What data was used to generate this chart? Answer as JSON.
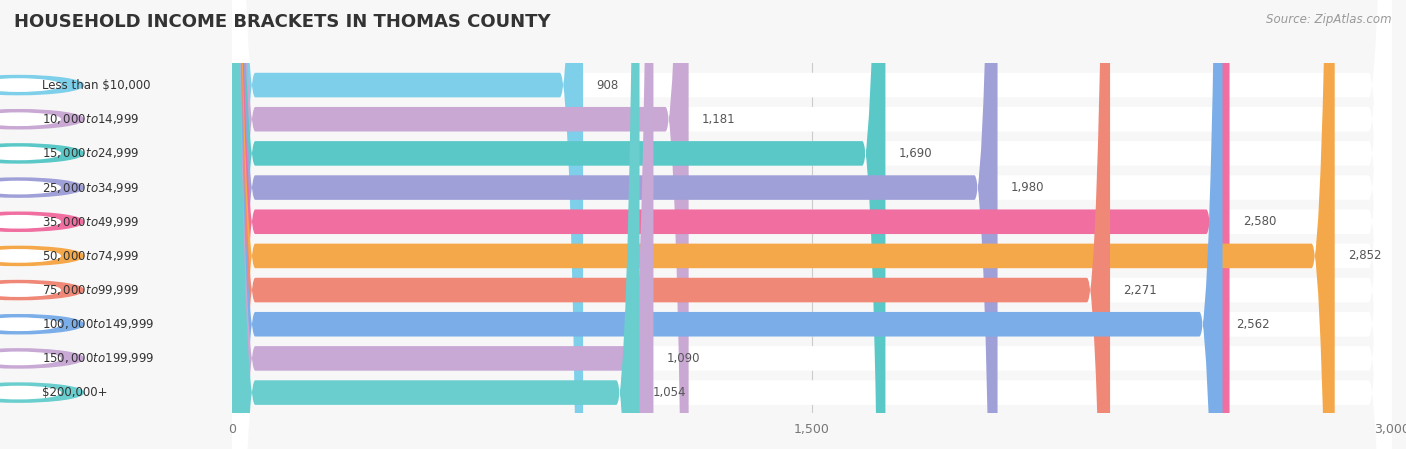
{
  "title": "HOUSEHOLD INCOME BRACKETS IN THOMAS COUNTY",
  "source": "Source: ZipAtlas.com",
  "categories": [
    "Less than $10,000",
    "$10,000 to $14,999",
    "$15,000 to $24,999",
    "$25,000 to $34,999",
    "$35,000 to $49,999",
    "$50,000 to $74,999",
    "$75,000 to $99,999",
    "$100,000 to $149,999",
    "$150,000 to $199,999",
    "$200,000+"
  ],
  "values": [
    908,
    1181,
    1690,
    1980,
    2580,
    2852,
    2271,
    2562,
    1090,
    1054
  ],
  "bar_colors": [
    "#7ecfea",
    "#c9a8d4",
    "#5bc8c8",
    "#a0a0d8",
    "#f06fa0",
    "#f5a84a",
    "#f08878",
    "#7baee8",
    "#c8a8d4",
    "#6acece"
  ],
  "xlim": [
    0,
    3000
  ],
  "xticks": [
    0,
    1500,
    3000
  ],
  "title_fontsize": 13,
  "label_fontsize": 8.5,
  "value_fontsize": 8.5,
  "source_fontsize": 8.5
}
